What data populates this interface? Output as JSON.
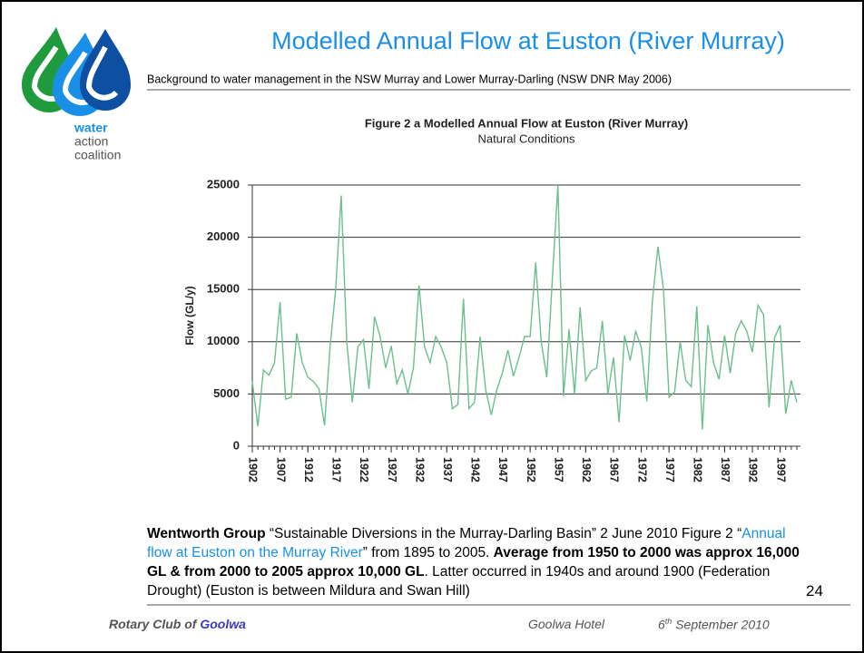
{
  "header": {
    "title": "Modelled Annual Flow at Euston (River Murray)",
    "subtitle": "Background to water management in the NSW Murray and Lower Murray-Darling (NSW DNR May 2006)"
  },
  "logo": {
    "line1": "water",
    "line2": "action",
    "line3": "coalition"
  },
  "chart_data": {
    "type": "line",
    "title": "Figure 2 a Modelled Annual Flow at Euston (River Murray)",
    "subtitle": "Natural Conditions",
    "ylabel": "Flow (GL/y)",
    "color": "#6cbf8c",
    "grid": true,
    "xlim": [
      1902,
      2000
    ],
    "ylim": [
      0,
      25000
    ],
    "yticks": [
      0,
      5000,
      10000,
      15000,
      20000,
      25000
    ],
    "xticks": [
      1902,
      1907,
      1912,
      1917,
      1922,
      1927,
      1932,
      1937,
      1942,
      1947,
      1952,
      1957,
      1962,
      1967,
      1972,
      1977,
      1982,
      1987,
      1992,
      1997
    ],
    "x": [
      1902,
      1903,
      1904,
      1905,
      1906,
      1907,
      1908,
      1909,
      1910,
      1911,
      1912,
      1913,
      1914,
      1915,
      1916,
      1917,
      1918,
      1919,
      1920,
      1921,
      1922,
      1923,
      1924,
      1925,
      1926,
      1927,
      1928,
      1929,
      1930,
      1931,
      1932,
      1933,
      1934,
      1935,
      1936,
      1937,
      1938,
      1939,
      1940,
      1941,
      1942,
      1943,
      1944,
      1945,
      1946,
      1947,
      1948,
      1949,
      1950,
      1951,
      1952,
      1953,
      1954,
      1955,
      1956,
      1957,
      1958,
      1959,
      1960,
      1961,
      1962,
      1963,
      1964,
      1965,
      1966,
      1967,
      1968,
      1969,
      1970,
      1971,
      1972,
      1973,
      1974,
      1975,
      1976,
      1977,
      1978,
      1979,
      1980,
      1981,
      1982,
      1983,
      1984,
      1985,
      1986,
      1987,
      1988,
      1989,
      1990,
      1991,
      1992,
      1993,
      1994,
      1995,
      1996,
      1997,
      1998,
      1999,
      2000
    ],
    "series": [
      {
        "name": "Flow",
        "color": "#6cbf8c",
        "values": [
          6200,
          1900,
          7300,
          6800,
          8000,
          13800,
          4500,
          4700,
          10800,
          8000,
          6600,
          6200,
          5500,
          2000,
          9500,
          15000,
          24000,
          10000,
          4200,
          9500,
          10200,
          5500,
          12400,
          10500,
          7500,
          9600,
          6000,
          7300,
          5000,
          7500,
          15400,
          9500,
          8000,
          10500,
          9500,
          8000,
          3600,
          4000,
          14100,
          3600,
          4200,
          10500,
          5400,
          3000,
          5400,
          7000,
          9200,
          6700,
          8500,
          10500,
          10500,
          17600,
          10000,
          6600,
          16000,
          25000,
          4800,
          11200,
          5000,
          13300,
          6300,
          7200,
          7500,
          12000,
          5000,
          8500,
          2300,
          10600,
          8200,
          11000,
          9500,
          4300,
          13900,
          19100,
          15000,
          4700,
          5200,
          10000,
          6300,
          5700,
          13400,
          1600,
          11600,
          8000,
          6400,
          10600,
          7000,
          10800,
          12000,
          11000,
          9000,
          13500,
          12600,
          3700,
          10400,
          11600,
          3100,
          6300,
          4200
        ]
      }
    ]
  },
  "note": [
    {
      "text": "Wentworth Group",
      "bold": true
    },
    {
      "text": " “Sustainable Diversions in the Murray-Darling Basin” 2 June 2010 Figure 2 “"
    },
    {
      "text": "Annual flow at Euston on the Murray River",
      "link": true
    },
    {
      "text": "” from 1895 to 2005. "
    },
    {
      "text": "Average from 1950 to 2000 was approx 16,000 GL & from 2000 to 2005 approx 10,000 GL",
      "bold": true
    },
    {
      "text": ". Latter occurred in 1940s and around 1900 (Federation Drought) (Euston is between Mildura and Swan Hill)"
    }
  ],
  "page_number": "24",
  "footer": {
    "club": "Rotary Club of",
    "club_name": "Goolwa",
    "venue": "Goolwa Hotel",
    "day": "6",
    "day_suffix": "th",
    "date_rest": " September 2010"
  }
}
